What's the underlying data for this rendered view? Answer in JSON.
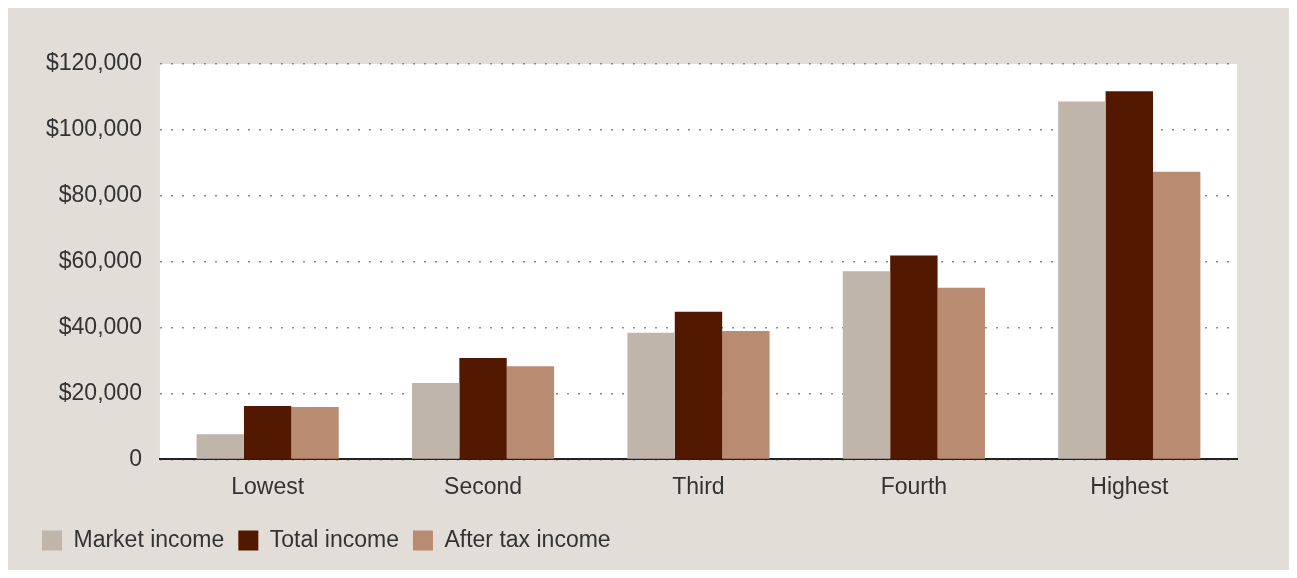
{
  "chart_data": {
    "type": "bar",
    "categories": [
      "Lowest",
      "Second",
      "Third",
      "Fourth",
      "Highest"
    ],
    "series": [
      {
        "name": "Market income",
        "color": "#bfb5ab",
        "values": [
          7600,
          23200,
          38400,
          57100,
          108600
        ]
      },
      {
        "name": "Total income",
        "color": "#521800",
        "values": [
          16200,
          30800,
          44800,
          61900,
          111700
        ]
      },
      {
        "name": "After tax income",
        "color": "#b98b70",
        "values": [
          15900,
          28300,
          39000,
          52100,
          87300
        ]
      }
    ],
    "ylim": [
      0,
      120000
    ],
    "yticks": [
      0,
      {
        "value": 20000,
        "label": "$20,000"
      },
      {
        "value": 40000,
        "label": "$40,000"
      },
      {
        "value": 60000,
        "label": "$60,000"
      },
      {
        "value": 80000,
        "label": "$80,000"
      },
      {
        "value": 100000,
        "label": "$100,000"
      },
      {
        "value": 120000,
        "label": "$120,000"
      }
    ],
    "grid": "y",
    "legend": "bottom left"
  }
}
